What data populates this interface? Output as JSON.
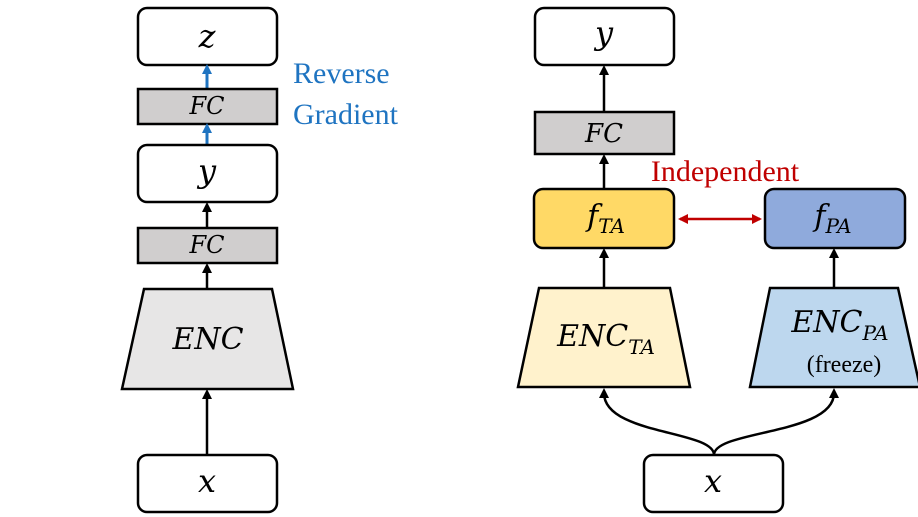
{
  "left": {
    "output": "z",
    "fc_top": "FC",
    "middle": "y",
    "fc_bottom": "FC",
    "encoder": "ENC",
    "input": "x",
    "annotation_line1": "Reverse",
    "annotation_line2": "Gradient"
  },
  "right": {
    "output": "y",
    "fc": "FC",
    "independent_label": "Independent",
    "f_ta": {
      "base": "f",
      "sub": "TA"
    },
    "f_pa": {
      "base": "f",
      "sub": "PA"
    },
    "enc_ta": {
      "base": "ENC",
      "sub": "TA"
    },
    "enc_pa": {
      "base": "ENC",
      "sub": "PA",
      "note": "(freeze)"
    },
    "input": "x"
  },
  "colors": {
    "fc_fill": "#D0CECE",
    "enc_gray": "#E7E6E6",
    "f_ta_fill": "#FFD966",
    "enc_ta_fill": "#FFF2CC",
    "f_pa_fill": "#8FAADC",
    "enc_pa_fill": "#BDD7EE",
    "reverse_gradient": "#1F74C1",
    "independent": "#C00000"
  }
}
